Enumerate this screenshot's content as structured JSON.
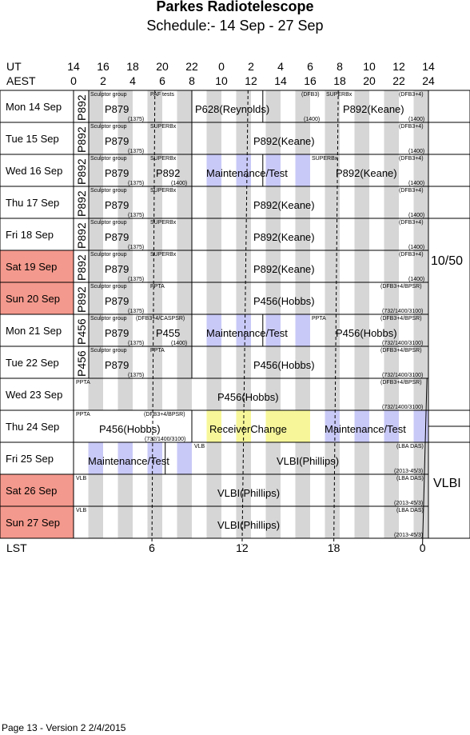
{
  "title": "Parkes Radiotelescope",
  "subtitle": "Schedule:- 14 Sep - 27 Sep",
  "footer": "Page 13 - Version 2  2/4/2015",
  "axis": {
    "ut_label": "UT",
    "aest_label": "AEST",
    "lst_label": "LST",
    "ut_ticks": [
      "14",
      "16",
      "18",
      "20",
      "22",
      "0",
      "2",
      "4",
      "6",
      "8",
      "10",
      "12",
      "14"
    ],
    "aest_ticks": [
      "0",
      "2",
      "4",
      "6",
      "8",
      "10",
      "12",
      "14",
      "16",
      "18",
      "20",
      "22",
      "24"
    ],
    "lst_ticks": [
      "6",
      "12",
      "18",
      "0"
    ]
  },
  "receivers": {
    "r1": "10/50",
    "r2": "VLBI"
  },
  "days": [
    {
      "label": "Mon  14 Sep",
      "weekend": false
    },
    {
      "label": "Tue   15 Sep",
      "weekend": false
    },
    {
      "label": "Wed  16 Sep",
      "weekend": false
    },
    {
      "label": "Thu   17 Sep",
      "weekend": false
    },
    {
      "label": "Fri    18 Sep",
      "weekend": false
    },
    {
      "label": "Sat   19 Sep",
      "weekend": true
    },
    {
      "label": "Sun  20 Sep",
      "weekend": true
    },
    {
      "label": "Mon  21 Sep",
      "weekend": false
    },
    {
      "label": "Tue   22 Sep",
      "weekend": false
    },
    {
      "label": "Wed  23 Sep",
      "weekend": false
    },
    {
      "label": "Thu   24 Sep",
      "weekend": false
    },
    {
      "label": "Fri    25 Sep",
      "weekend": false
    },
    {
      "label": "Sat    26 Sep",
      "weekend": true
    },
    {
      "label": "Sun  27 Sep",
      "weekend": true
    }
  ],
  "vertical_project": [
    "P892",
    "P892",
    "P892",
    "P892",
    "P892",
    "P892",
    "P892",
    "P456",
    "P456"
  ],
  "labels": {
    "sculptor": "Sculptor group",
    "parkes": "PAF tests",
    "superb": "SUPERBx",
    "dfb3": "(DFB3)",
    "dfb34": "(DFB3+4)",
    "dfb34bpsr": "(DFB3+4/BPSR)",
    "dfb34caspsr": "(DFB3+4/CASPSR)",
    "r1375": "(1375)",
    "r1400": "(1400)",
    "r732": "(732/1400/3100)",
    "pta": "PPTA",
    "vlb": "VLB",
    "lbadas": "(LBA DAS)",
    "r2013": "(2013-45/3)",
    "p879": "P879",
    "p628": "P628(Reynolds)",
    "p892k": "P892(Keane)",
    "p892": "P892",
    "maint": "Maintenance/Test",
    "p456h": "P456(Hobbs)",
    "p455": "P455",
    "rxchange": "ReceiverChange",
    "vlbip": "VLBI(Phillips)"
  },
  "colors": {
    "weekend": "#f4998d",
    "shade": "#d6d6d6",
    "maint": "#c9c9f7",
    "rx": "#f7f79a"
  }
}
